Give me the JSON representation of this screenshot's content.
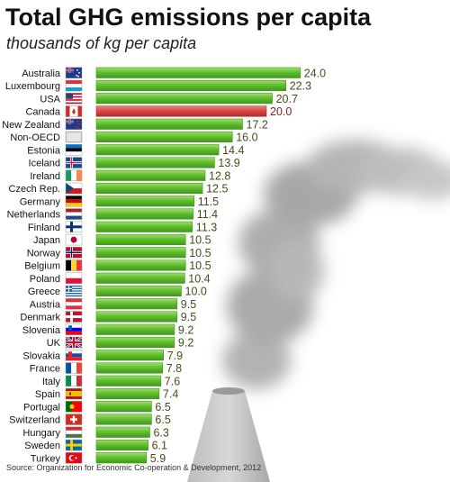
{
  "chart_data": {
    "type": "bar",
    "orientation": "horizontal",
    "title": "Total GHG emissions per capita",
    "subtitle": "thousands of kg per capita",
    "source": "Source: Organization for Economic Co-operation & Development, 2012",
    "categories": [
      "Australia",
      "Luxembourg",
      "USA",
      "Canada",
      "New Zealand",
      "Non-OECD",
      "Estonia",
      "Iceland",
      "Ireland",
      "Czech Rep.",
      "Germany",
      "Netherlands",
      "Finland",
      "Japan",
      "Norway",
      "Belgium",
      "Poland",
      "Greece",
      "Austria",
      "Denmark",
      "Slovenia",
      "UK",
      "Slovakia",
      "France",
      "Italy",
      "Spain",
      "Portugal",
      "Switzerland",
      "Hungary",
      "Sweden",
      "Turkey"
    ],
    "values": [
      24.0,
      22.3,
      20.7,
      20.0,
      17.2,
      16.0,
      14.4,
      13.9,
      12.8,
      12.5,
      11.5,
      11.4,
      11.3,
      10.5,
      10.5,
      10.5,
      10.4,
      10.0,
      9.5,
      9.5,
      9.2,
      9.2,
      7.9,
      7.8,
      7.6,
      7.4,
      6.5,
      6.5,
      6.3,
      6.1,
      5.9
    ],
    "value_labels": [
      "24.0",
      "22.3",
      "20.7",
      "20.0",
      "17.2",
      "16.0",
      "14.4",
      "13.9",
      "12.8",
      "12.5",
      "11.5",
      "11.4",
      "11.3",
      "10.5",
      "10.5",
      "10.5",
      "10.4",
      "10.0",
      "9.5",
      "9.5",
      "9.2",
      "9.2",
      "7.9",
      "7.8",
      "7.6",
      "7.4",
      "6.5",
      "6.5",
      "6.3",
      "6.1",
      "5.9"
    ],
    "highlight": "Canada",
    "colors": {
      "bar": "#6fc43c",
      "bar_dark": "#3e9a1c",
      "highlight": "#d94848",
      "highlight_dark": "#b02a2a",
      "value_text": "#4a4a1a"
    },
    "flags": [
      "australia-flag",
      "luxembourg-flag",
      "usa-flag",
      "canada-flag",
      "new-zealand-flag",
      "non-oecd-flag",
      "estonia-flag",
      "iceland-flag",
      "ireland-flag",
      "czech-flag",
      "germany-flag",
      "netherlands-flag",
      "finland-flag",
      "japan-flag",
      "norway-flag",
      "belgium-flag",
      "poland-flag",
      "greece-flag",
      "austria-flag",
      "denmark-flag",
      "slovenia-flag",
      "uk-flag",
      "slovakia-flag",
      "france-flag",
      "italy-flag",
      "spain-flag",
      "portugal-flag",
      "switzerland-flag",
      "hungary-flag",
      "sweden-flag",
      "turkey-flag"
    ],
    "decoration": "smokestack-with-smoke",
    "grid": false,
    "legend": "none"
  }
}
